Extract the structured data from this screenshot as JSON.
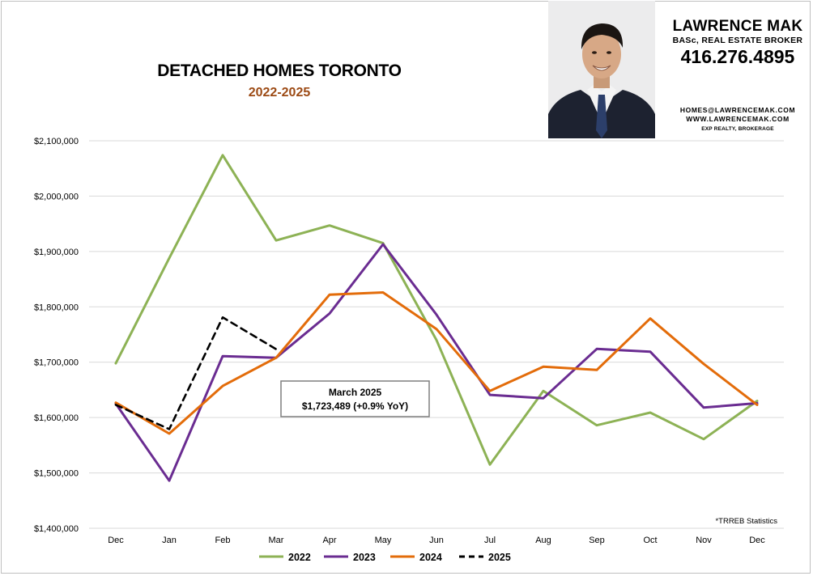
{
  "header": {
    "title": "DETACHED HOMES TORONTO",
    "subtitle": "2022-2025"
  },
  "agent": {
    "name": "LAWRENCE MAK",
    "title": "BASc, REAL ESTATE BROKER",
    "phone": "416.276.4895",
    "email": "HOMES@LAWRENCEMAK.COM",
    "website": "WWW.LAWRENCEMAK.COM",
    "brokerage": "EXP REALTY, BROKERAGE"
  },
  "footnote": "*TRREB Statistics",
  "chart_data": {
    "type": "line",
    "title": "DETACHED HOMES TORONTO",
    "subtitle": "2022-2025",
    "categories": [
      "Dec",
      "Jan",
      "Feb",
      "Mar",
      "Apr",
      "May",
      "Jun",
      "Jul",
      "Aug",
      "Sep",
      "Oct",
      "Nov",
      "Dec"
    ],
    "ylim": [
      1400000,
      2100000
    ],
    "yticks": [
      1400000,
      1500000,
      1600000,
      1700000,
      1800000,
      1900000,
      2000000,
      2100000
    ],
    "ytick_labels": [
      "$1,400,000",
      "$1,500,000",
      "$1,600,000",
      "$1,700,000",
      "$1,800,000",
      "$1,900,000",
      "$2,000,000",
      "$2,100,000"
    ],
    "grid": true,
    "legend_position": "bottom",
    "series": [
      {
        "name": "2022",
        "color": "#8db255",
        "dashed": false,
        "values": [
          1698000,
          1888000,
          2074000,
          1920000,
          1947000,
          1915000,
          1740000,
          1515000,
          1648000,
          1586000,
          1609000,
          1561000,
          1630000
        ]
      },
      {
        "name": "2023",
        "color": "#6a2c91",
        "dashed": false,
        "values": [
          1625000,
          1486000,
          1711000,
          1708000,
          1788000,
          1913000,
          1786000,
          1641000,
          1635000,
          1724000,
          1719000,
          1618000,
          1626000
        ]
      },
      {
        "name": "2024",
        "color": "#e36c0a",
        "dashed": false,
        "values": [
          1627000,
          1571000,
          1657000,
          1708000,
          1822000,
          1826000,
          1760000,
          1648000,
          1692000,
          1686000,
          1779000,
          1697000,
          1623000
        ]
      },
      {
        "name": "2025",
        "color": "#000000",
        "dashed": true,
        "values": [
          1623000,
          1579000,
          1781000,
          1723489,
          null,
          null,
          null,
          null,
          null,
          null,
          null,
          null,
          null
        ]
      }
    ],
    "annotation": {
      "line1": "March 2025",
      "line2": "$1,723,489 (+0.9% YoY)"
    }
  }
}
